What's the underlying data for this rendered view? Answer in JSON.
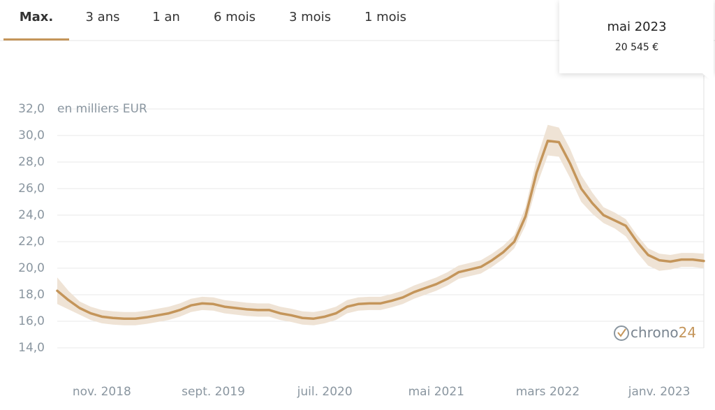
{
  "tabs": {
    "items": [
      "Max.",
      "3 ans",
      "1 an",
      "6 mois",
      "3 mois",
      "1 mois"
    ],
    "active": 0
  },
  "tooltip": {
    "date": "mai 2023",
    "price": "20 545 €"
  },
  "logo": [
    "chrono",
    "24"
  ],
  "chart_data": {
    "type": "line",
    "y_unit_label": "en milliers EUR",
    "categories": [
      null,
      null,
      null,
      null,
      "nov. 2018",
      null,
      null,
      null,
      null,
      null,
      null,
      null,
      null,
      null,
      "sept. 2019",
      null,
      null,
      null,
      null,
      null,
      null,
      null,
      null,
      null,
      "juil. 2020",
      null,
      null,
      null,
      null,
      null,
      null,
      null,
      null,
      null,
      "mai 2021",
      null,
      null,
      null,
      null,
      null,
      null,
      null,
      null,
      null,
      "mars 2022",
      null,
      null,
      null,
      null,
      null,
      null,
      null,
      null,
      null,
      "janv. 2023",
      null,
      null,
      null,
      null
    ],
    "series": [
      {
        "color": "#c4955a",
        "values": [
          18.3,
          17.6,
          17.0,
          16.6,
          16.35,
          16.25,
          16.2,
          16.2,
          16.3,
          16.45,
          16.6,
          16.85,
          17.2,
          17.35,
          17.3,
          17.1,
          17.0,
          16.9,
          16.85,
          16.85,
          16.6,
          16.45,
          16.25,
          16.2,
          16.35,
          16.6,
          17.1,
          17.3,
          17.35,
          17.35,
          17.55,
          17.8,
          18.2,
          18.5,
          18.8,
          19.2,
          19.7,
          19.9,
          20.1,
          20.6,
          21.2,
          22.0,
          23.9,
          27.2,
          29.6,
          29.5,
          27.9,
          26.0,
          24.9,
          24.0,
          23.6,
          23.2,
          22.0,
          21.0,
          20.6,
          20.5,
          20.65,
          20.65,
          20.545
        ],
        "band_upper": [
          19.3,
          18.3,
          17.5,
          17.1,
          16.85,
          16.75,
          16.7,
          16.7,
          16.8,
          16.95,
          17.1,
          17.35,
          17.7,
          17.85,
          17.8,
          17.6,
          17.5,
          17.4,
          17.35,
          17.35,
          17.1,
          16.95,
          16.75,
          16.7,
          16.85,
          17.1,
          17.6,
          17.8,
          17.85,
          17.85,
          18.05,
          18.3,
          18.7,
          19.0,
          19.3,
          19.7,
          20.2,
          20.4,
          20.6,
          21.1,
          21.7,
          22.5,
          24.6,
          28.2,
          30.8,
          30.6,
          29.0,
          27.0,
          25.7,
          24.6,
          24.2,
          23.7,
          22.5,
          21.5,
          21.1,
          21.0,
          21.15,
          21.15,
          21.1
        ],
        "band_lower": [
          17.3,
          16.9,
          16.5,
          16.1,
          15.85,
          15.75,
          15.7,
          15.7,
          15.8,
          15.95,
          16.1,
          16.35,
          16.7,
          16.85,
          16.8,
          16.6,
          16.5,
          16.4,
          16.35,
          16.35,
          16.1,
          15.95,
          15.75,
          15.7,
          15.85,
          16.1,
          16.6,
          16.8,
          16.85,
          16.85,
          17.05,
          17.3,
          17.7,
          18.0,
          18.3,
          18.7,
          19.2,
          19.4,
          19.6,
          20.1,
          20.7,
          21.5,
          23.2,
          26.2,
          28.5,
          28.4,
          26.8,
          25.0,
          24.1,
          23.4,
          23.0,
          22.4,
          21.2,
          20.2,
          19.8,
          19.9,
          20.1,
          20.1,
          20.0
        ],
        "band_color": "#efe3d5"
      }
    ],
    "ylim": [
      14,
      32
    ],
    "yticks": [
      {
        "value": 14,
        "label": "14,0"
      },
      {
        "value": 16,
        "label": "16,0"
      },
      {
        "value": 18,
        "label": "18,0"
      },
      {
        "value": 20,
        "label": "20,0"
      },
      {
        "value": 22,
        "label": "22,0"
      },
      {
        "value": 24,
        "label": "24,0"
      },
      {
        "value": 26,
        "label": "26,0"
      },
      {
        "value": 28,
        "label": "28,0"
      },
      {
        "value": 30,
        "label": "30,0"
      },
      {
        "value": 32,
        "label": "32,0"
      }
    ],
    "grid": true
  }
}
